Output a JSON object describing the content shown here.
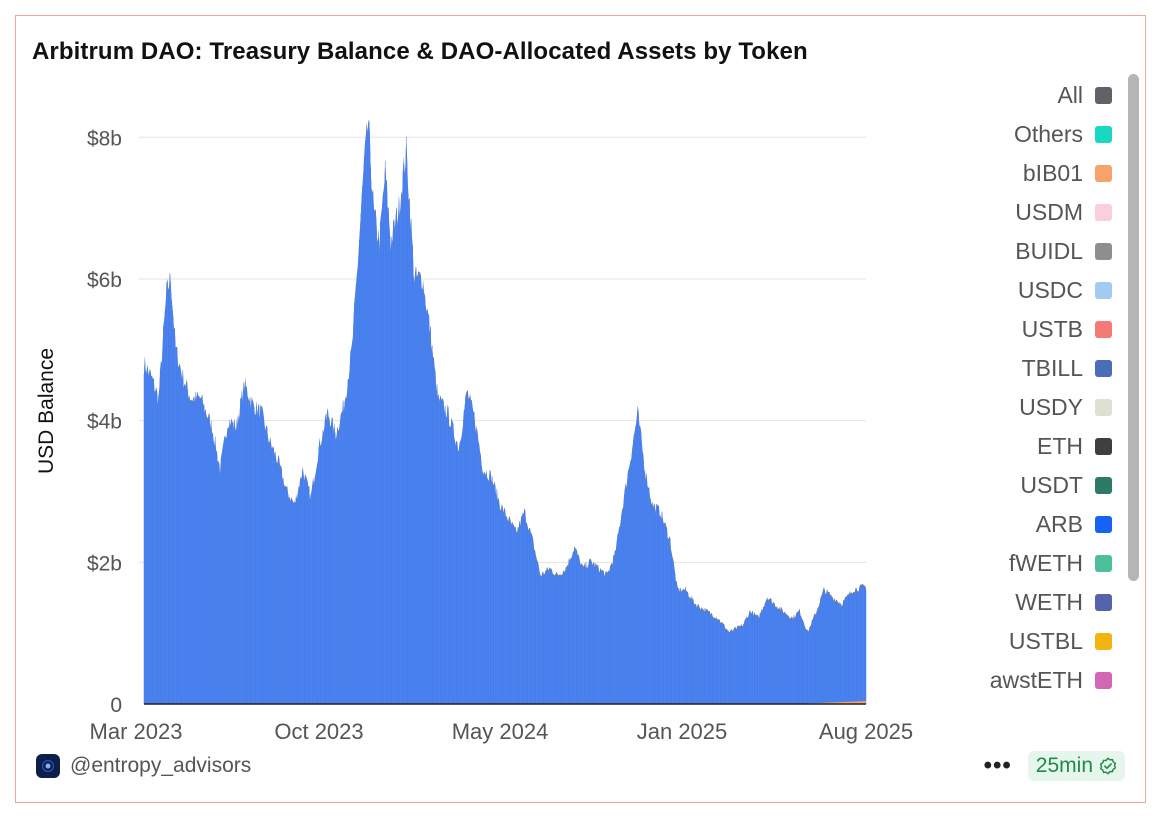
{
  "title": "Arbitrum DAO: Treasury Balance & DAO-Allocated Assets by Token",
  "footer": {
    "handle": "@entropy_advisors",
    "refresh": "25min",
    "more": "•••"
  },
  "legend": [
    {
      "label": "All",
      "color": "#5f6368"
    },
    {
      "label": "Others",
      "color": "#19d8c1"
    },
    {
      "label": "bIB01",
      "color": "#f7a26b"
    },
    {
      "label": "USDM",
      "color": "#f9cfd9"
    },
    {
      "label": "BUIDL",
      "color": "#8e8e8e"
    },
    {
      "label": "USDC",
      "color": "#a3ccf2"
    },
    {
      "label": "USTB",
      "color": "#f47a76"
    },
    {
      "label": "TBILL",
      "color": "#4a6db8"
    },
    {
      "label": "USDY",
      "color": "#dfe0d2"
    },
    {
      "label": "ETH",
      "color": "#3f3f3f"
    },
    {
      "label": "USDT",
      "color": "#2d7a68"
    },
    {
      "label": "ARB",
      "color": "#1761f5"
    },
    {
      "label": "fWETH",
      "color": "#4cbf9c"
    },
    {
      "label": "WETH",
      "color": "#5563ad"
    },
    {
      "label": "USTBL",
      "color": "#f2b40f"
    },
    {
      "label": "awstETH",
      "color": "#d467b5"
    }
  ],
  "chart_data": {
    "type": "area",
    "stacked": true,
    "ylabel": "USD Balance",
    "xlabel": "",
    "x_ticks": [
      "Mar 2023",
      "Oct 2023",
      "May 2024",
      "Jan 2025",
      "Aug 2025"
    ],
    "y_ticks": [
      "0",
      "$2b",
      "$4b",
      "$6b",
      "$8b"
    ],
    "ylim": [
      0,
      8.3
    ],
    "y_unit": "billion USD",
    "grid": true,
    "legend_position": "right",
    "x_range": [
      "2023-03-23",
      "2025-08-31"
    ],
    "series": [
      {
        "name": "ARB",
        "color": "#4b84f0",
        "points": [
          [
            "2023-03-23",
            4.8
          ],
          [
            "2023-04-01",
            4.6
          ],
          [
            "2023-04-10",
            4.3
          ],
          [
            "2023-04-20",
            5.8
          ],
          [
            "2023-04-25",
            6.0
          ],
          [
            "2023-05-01",
            5.0
          ],
          [
            "2023-05-10",
            4.6
          ],
          [
            "2023-05-20",
            4.3
          ],
          [
            "2023-06-01",
            4.3
          ],
          [
            "2023-06-15",
            3.9
          ],
          [
            "2023-06-25",
            3.3
          ],
          [
            "2023-07-05",
            4.0
          ],
          [
            "2023-07-15",
            3.9
          ],
          [
            "2023-07-25",
            4.5
          ],
          [
            "2023-08-05",
            4.2
          ],
          [
            "2023-08-15",
            4.1
          ],
          [
            "2023-08-25",
            3.7
          ],
          [
            "2023-09-05",
            3.4
          ],
          [
            "2023-09-15",
            3.0
          ],
          [
            "2023-09-25",
            2.8
          ],
          [
            "2023-10-05",
            3.3
          ],
          [
            "2023-10-15",
            2.9
          ],
          [
            "2023-10-25",
            3.6
          ],
          [
            "2023-11-05",
            4.1
          ],
          [
            "2023-11-15",
            3.8
          ],
          [
            "2023-11-25",
            4.2
          ],
          [
            "2023-12-05",
            5.0
          ],
          [
            "2023-12-12",
            6.2
          ],
          [
            "2023-12-20",
            7.6
          ],
          [
            "2023-12-25",
            8.2
          ],
          [
            "2024-01-01",
            6.9
          ],
          [
            "2024-01-08",
            6.5
          ],
          [
            "2024-01-15",
            7.5
          ],
          [
            "2024-01-22",
            6.5
          ],
          [
            "2024-02-01",
            7.0
          ],
          [
            "2024-02-10",
            7.8
          ],
          [
            "2024-02-20",
            6.0
          ],
          [
            "2024-03-01",
            6.0
          ],
          [
            "2024-03-10",
            5.3
          ],
          [
            "2024-03-20",
            4.3
          ],
          [
            "2024-04-01",
            4.1
          ],
          [
            "2024-04-15",
            3.6
          ],
          [
            "2024-04-25",
            4.4
          ],
          [
            "2024-05-05",
            4.0
          ],
          [
            "2024-05-15",
            3.3
          ],
          [
            "2024-05-25",
            3.2
          ],
          [
            "2024-06-05",
            2.8
          ],
          [
            "2024-06-15",
            2.6
          ],
          [
            "2024-06-25",
            2.4
          ],
          [
            "2024-07-05",
            2.7
          ],
          [
            "2024-07-15",
            2.3
          ],
          [
            "2024-07-25",
            1.8
          ],
          [
            "2024-08-05",
            1.9
          ],
          [
            "2024-08-15",
            1.8
          ],
          [
            "2024-08-25",
            1.9
          ],
          [
            "2024-09-05",
            2.2
          ],
          [
            "2024-09-15",
            1.9
          ],
          [
            "2024-09-25",
            2.0
          ],
          [
            "2024-10-05",
            1.9
          ],
          [
            "2024-10-15",
            1.8
          ],
          [
            "2024-10-25",
            2.1
          ],
          [
            "2024-11-05",
            2.9
          ],
          [
            "2024-11-15",
            3.6
          ],
          [
            "2024-11-22",
            4.1
          ],
          [
            "2024-12-01",
            3.3
          ],
          [
            "2024-12-10",
            2.8
          ],
          [
            "2024-12-20",
            2.7
          ],
          [
            "2025-01-01",
            2.3
          ],
          [
            "2025-01-10",
            1.6
          ],
          [
            "2025-01-20",
            1.6
          ],
          [
            "2025-02-01",
            1.4
          ],
          [
            "2025-02-15",
            1.3
          ],
          [
            "2025-03-01",
            1.2
          ],
          [
            "2025-03-15",
            1.0
          ],
          [
            "2025-04-01",
            1.1
          ],
          [
            "2025-04-10",
            1.3
          ],
          [
            "2025-04-20",
            1.2
          ],
          [
            "2025-05-01",
            1.5
          ],
          [
            "2025-05-10",
            1.4
          ],
          [
            "2025-05-20",
            1.3
          ],
          [
            "2025-06-01",
            1.2
          ],
          [
            "2025-06-10",
            1.3
          ],
          [
            "2025-06-20",
            1.0
          ],
          [
            "2025-07-01",
            1.3
          ],
          [
            "2025-07-10",
            1.6
          ],
          [
            "2025-07-20",
            1.5
          ],
          [
            "2025-08-01",
            1.4
          ],
          [
            "2025-08-15",
            1.6
          ],
          [
            "2025-08-31",
            1.65
          ]
        ]
      },
      {
        "name": "All",
        "color": "#7d7d7d",
        "note_values": "thin layer on top of ARB",
        "points": [
          [
            "2023-03-23",
            0.02
          ],
          [
            "2025-08-31",
            0.02
          ]
        ]
      },
      {
        "name": "bIB01",
        "color": "#f7a26b",
        "points": [
          [
            "2023-03-23",
            0.0
          ],
          [
            "2025-06-01",
            0.0
          ],
          [
            "2025-08-31",
            0.04
          ]
        ]
      }
    ]
  }
}
